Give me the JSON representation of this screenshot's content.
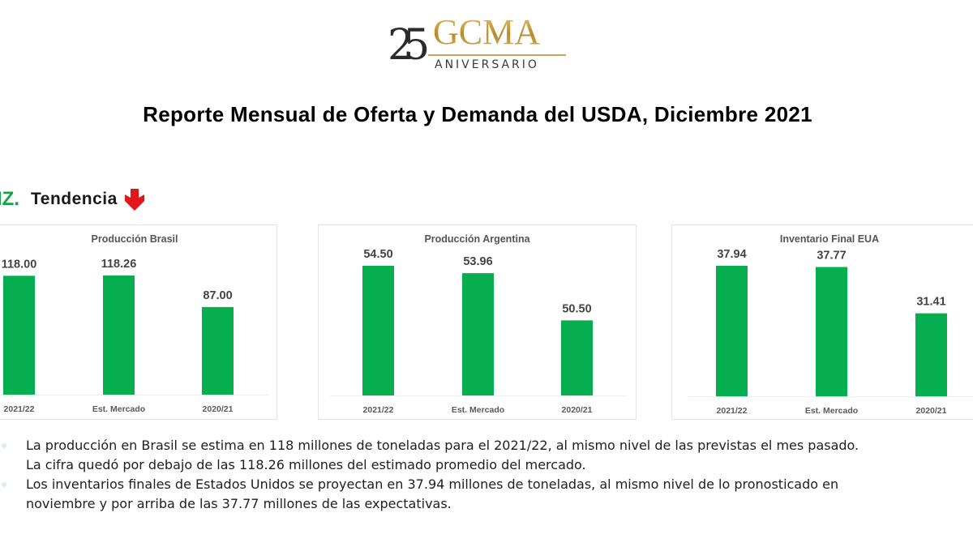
{
  "logo": {
    "number": "25",
    "brand": "GCMA",
    "subtitle": "ANIVERSARIO"
  },
  "header": {
    "title": "Reporte Mensual de Oferta y Demanda del USDA, Diciembre 2021"
  },
  "section": {
    "prefix": "IZ.",
    "label": "Tendencia",
    "trend_icon": "arrow-down-icon",
    "trend_color": "#e5161b"
  },
  "colors": {
    "bar": "#06ae4f",
    "accent_green": "#15a34a",
    "card_title": "#555555",
    "value_label": "#444444"
  },
  "chart_data": [
    {
      "type": "bar",
      "title": "Producción Brasil",
      "categories": [
        "2021/22",
        "Est. Mercado",
        "2020/21"
      ],
      "values": [
        118.0,
        118.26,
        87.0
      ],
      "value_labels": [
        "118.00",
        "118.26",
        "87.00"
      ],
      "xlabel": "",
      "ylabel": "",
      "grid": false,
      "legend": "none"
    },
    {
      "type": "bar",
      "title": "Producción Argentina",
      "categories": [
        "2021/22",
        "Est. Mercado",
        "2020/21"
      ],
      "values": [
        54.5,
        53.96,
        50.5
      ],
      "value_labels": [
        "54.50",
        "53.96",
        "50.50"
      ],
      "xlabel": "",
      "ylabel": "",
      "grid": false,
      "legend": "none"
    },
    {
      "type": "bar",
      "title": "Inventario Final EUA",
      "categories": [
        "2021/22",
        "Est. Mercado",
        "2020/21"
      ],
      "values": [
        37.94,
        37.77,
        31.41
      ],
      "value_labels": [
        "37.94",
        "37.77",
        "31.41"
      ],
      "xlabel": "",
      "ylabel": "",
      "grid": false,
      "legend": "none"
    }
  ],
  "bullets": [
    {
      "lines": [
        "La producción en Brasil se estima en 118 millones de toneladas para el 2021/22, al mismo nivel de las previstas el mes pasado.",
        "La cifra quedó por debajo de las 118.26 millones del estimado promedio del mercado."
      ]
    },
    {
      "lines": [
        "Los inventarios finales de Estados Unidos se proyectan en 37.94 millones de toneladas, al mismo nivel de lo pronosticado en",
        "noviembre y por arriba de las 37.77 millones de las expectativas."
      ]
    }
  ]
}
